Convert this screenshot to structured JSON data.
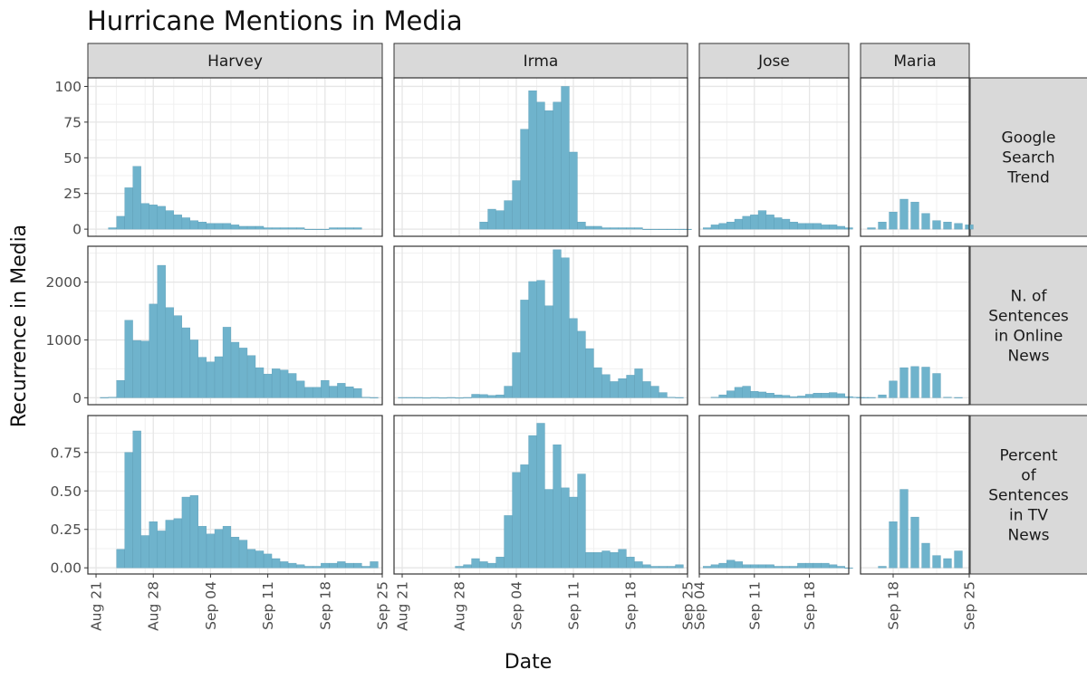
{
  "chart_data": {
    "type": "bar",
    "title": "Hurricane Mentions in Media",
    "xlabel": "Date",
    "ylabel": "Recurrence in Media",
    "bar_color": "#6fb3cc",
    "columns": [
      {
        "name": "Harvey",
        "x_range": [
          "2017-08-20",
          "2017-09-25"
        ],
        "x_ticks": [
          {
            "label": "Aug 21",
            "date": "2017-08-21"
          },
          {
            "label": "Aug 28",
            "date": "2017-08-28"
          },
          {
            "label": "Sep 04",
            "date": "2017-09-04"
          },
          {
            "label": "Sep 11",
            "date": "2017-09-11"
          },
          {
            "label": "Sep 18",
            "date": "2017-09-18"
          },
          {
            "label": "Sep 25",
            "date": "2017-09-25"
          }
        ]
      },
      {
        "name": "Irma",
        "x_range": [
          "2017-08-20",
          "2017-09-25"
        ],
        "x_ticks": [
          {
            "label": "Aug 21",
            "date": "2017-08-21"
          },
          {
            "label": "Aug 28",
            "date": "2017-08-28"
          },
          {
            "label": "Sep 04",
            "date": "2017-09-04"
          },
          {
            "label": "Sep 11",
            "date": "2017-09-11"
          },
          {
            "label": "Sep 18",
            "date": "2017-09-18"
          },
          {
            "label": "Sep 25",
            "date": "2017-09-25"
          }
        ]
      },
      {
        "name": "Jose",
        "x_range": [
          "2017-09-04",
          "2017-09-23"
        ],
        "x_ticks": [
          {
            "label": "Sep 04",
            "date": "2017-09-04"
          },
          {
            "label": "Sep 11",
            "date": "2017-09-11"
          },
          {
            "label": "Sep 18",
            "date": "2017-09-18"
          }
        ]
      },
      {
        "name": "Maria",
        "x_range": [
          "2017-09-15",
          "2017-09-25"
        ],
        "x_ticks": [
          {
            "label": "Sep 18",
            "date": "2017-09-18"
          },
          {
            "label": "Sep 25",
            "date": "2017-09-25"
          }
        ]
      }
    ],
    "rows": [
      {
        "label_lines": [
          "Google",
          "Search",
          "Trend"
        ],
        "ylim": [
          -5,
          106
        ],
        "y_ticks": [
          0,
          25,
          50,
          75,
          100
        ],
        "y_tick_labels": [
          "0",
          "25",
          "50",
          "75",
          "100"
        ]
      },
      {
        "label_lines": [
          "N. of",
          "Sentences",
          "in Online",
          "News"
        ],
        "ylim": [
          -120,
          2620
        ],
        "y_ticks": [
          0,
          1000,
          2000
        ],
        "y_tick_labels": [
          "0",
          "1000",
          "2000"
        ]
      },
      {
        "label_lines": [
          "Percent",
          "of",
          "Sentences",
          "in TV",
          "News"
        ],
        "ylim": [
          -0.04,
          0.99
        ],
        "y_ticks": [
          0,
          0.25,
          0.5,
          0.75
        ],
        "y_tick_labels": [
          "0.00",
          "0.25",
          "0.50",
          "0.75"
        ]
      }
    ],
    "series": [
      {
        "column": "Harvey",
        "row": 0,
        "start": "2017-08-23",
        "values": [
          1,
          9,
          29,
          44,
          18,
          17,
          16,
          13,
          10,
          8,
          6,
          5,
          4,
          4,
          4,
          3,
          2,
          2,
          2,
          1,
          1,
          1,
          1,
          1,
          0,
          0,
          0,
          1,
          1,
          1,
          1
        ]
      },
      {
        "column": "Harvey",
        "row": 1,
        "start": "2017-08-22",
        "values": [
          5,
          10,
          300,
          1340,
          990,
          980,
          1620,
          2290,
          1560,
          1420,
          1210,
          1000,
          700,
          620,
          710,
          1220,
          960,
          860,
          730,
          520,
          410,
          500,
          480,
          420,
          290,
          180,
          180,
          300,
          200,
          250,
          190,
          160,
          10,
          5
        ]
      },
      {
        "column": "Harvey",
        "row": 2,
        "start": "2017-08-24",
        "values": [
          0.12,
          0.75,
          0.89,
          0.21,
          0.3,
          0.24,
          0.31,
          0.32,
          0.46,
          0.47,
          0.27,
          0.22,
          0.25,
          0.27,
          0.2,
          0.18,
          0.12,
          0.11,
          0.09,
          0.06,
          0.04,
          0.03,
          0.02,
          0.01,
          0.01,
          0.03,
          0.03,
          0.04,
          0.03,
          0.03,
          0.01,
          0.04
        ]
      },
      {
        "column": "Irma",
        "row": 0,
        "start": "2017-08-31",
        "values": [
          5,
          14,
          13,
          20,
          34,
          70,
          97,
          89,
          83,
          89,
          100,
          54,
          5,
          2,
          2,
          1,
          1,
          1,
          1,
          1,
          0,
          0,
          0,
          0,
          0,
          0
        ]
      },
      {
        "column": "Irma",
        "row": 1,
        "start": "2017-08-21",
        "values": [
          5,
          5,
          5,
          0,
          5,
          0,
          5,
          0,
          5,
          60,
          55,
          40,
          50,
          200,
          780,
          1690,
          2010,
          2030,
          1590,
          2560,
          2420,
          1370,
          1150,
          850,
          520,
          400,
          280,
          330,
          390,
          500,
          280,
          200,
          90,
          10,
          5
        ]
      },
      {
        "column": "Irma",
        "row": 2,
        "start": "2017-08-28",
        "values": [
          0.01,
          0.02,
          0.06,
          0.04,
          0.03,
          0.07,
          0.34,
          0.62,
          0.67,
          0.86,
          0.94,
          0.51,
          0.8,
          0.52,
          0.46,
          0.61,
          0.1,
          0.1,
          0.11,
          0.1,
          0.12,
          0.07,
          0.04,
          0.02,
          0.01,
          0.01,
          0.01,
          0.02
        ]
      },
      {
        "column": "Jose",
        "row": 0,
        "start": "2017-09-05",
        "values": [
          1,
          3,
          4,
          5,
          7,
          9,
          10,
          13,
          10,
          8,
          7,
          5,
          4,
          4,
          4,
          3,
          3,
          2,
          1
        ]
      },
      {
        "column": "Jose",
        "row": 1,
        "start": "2017-09-06",
        "values": [
          10,
          50,
          120,
          180,
          200,
          110,
          100,
          80,
          50,
          40,
          20,
          30,
          60,
          80,
          80,
          90,
          70,
          20,
          10,
          5
        ]
      },
      {
        "column": "Jose",
        "row": 2,
        "start": "2017-09-05",
        "values": [
          0.01,
          0.02,
          0.03,
          0.05,
          0.04,
          0.02,
          0.02,
          0.02,
          0.02,
          0.01,
          0.01,
          0.01,
          0.03,
          0.03,
          0.03,
          0.03,
          0.02,
          0.01,
          0.0
        ]
      },
      {
        "column": "Maria",
        "row": 0,
        "start": "2017-09-16",
        "values": [
          1,
          5,
          12,
          21,
          19,
          11,
          6,
          5,
          4,
          3
        ]
      },
      {
        "column": "Maria",
        "row": 1,
        "start": "2017-09-15",
        "values": [
          5,
          5,
          50,
          290,
          520,
          540,
          530,
          420,
          10,
          5
        ]
      },
      {
        "column": "Maria",
        "row": 2,
        "start": "2017-09-17",
        "values": [
          0.01,
          0.3,
          0.51,
          0.33,
          0.16,
          0.08,
          0.06,
          0.11
        ]
      }
    ]
  }
}
